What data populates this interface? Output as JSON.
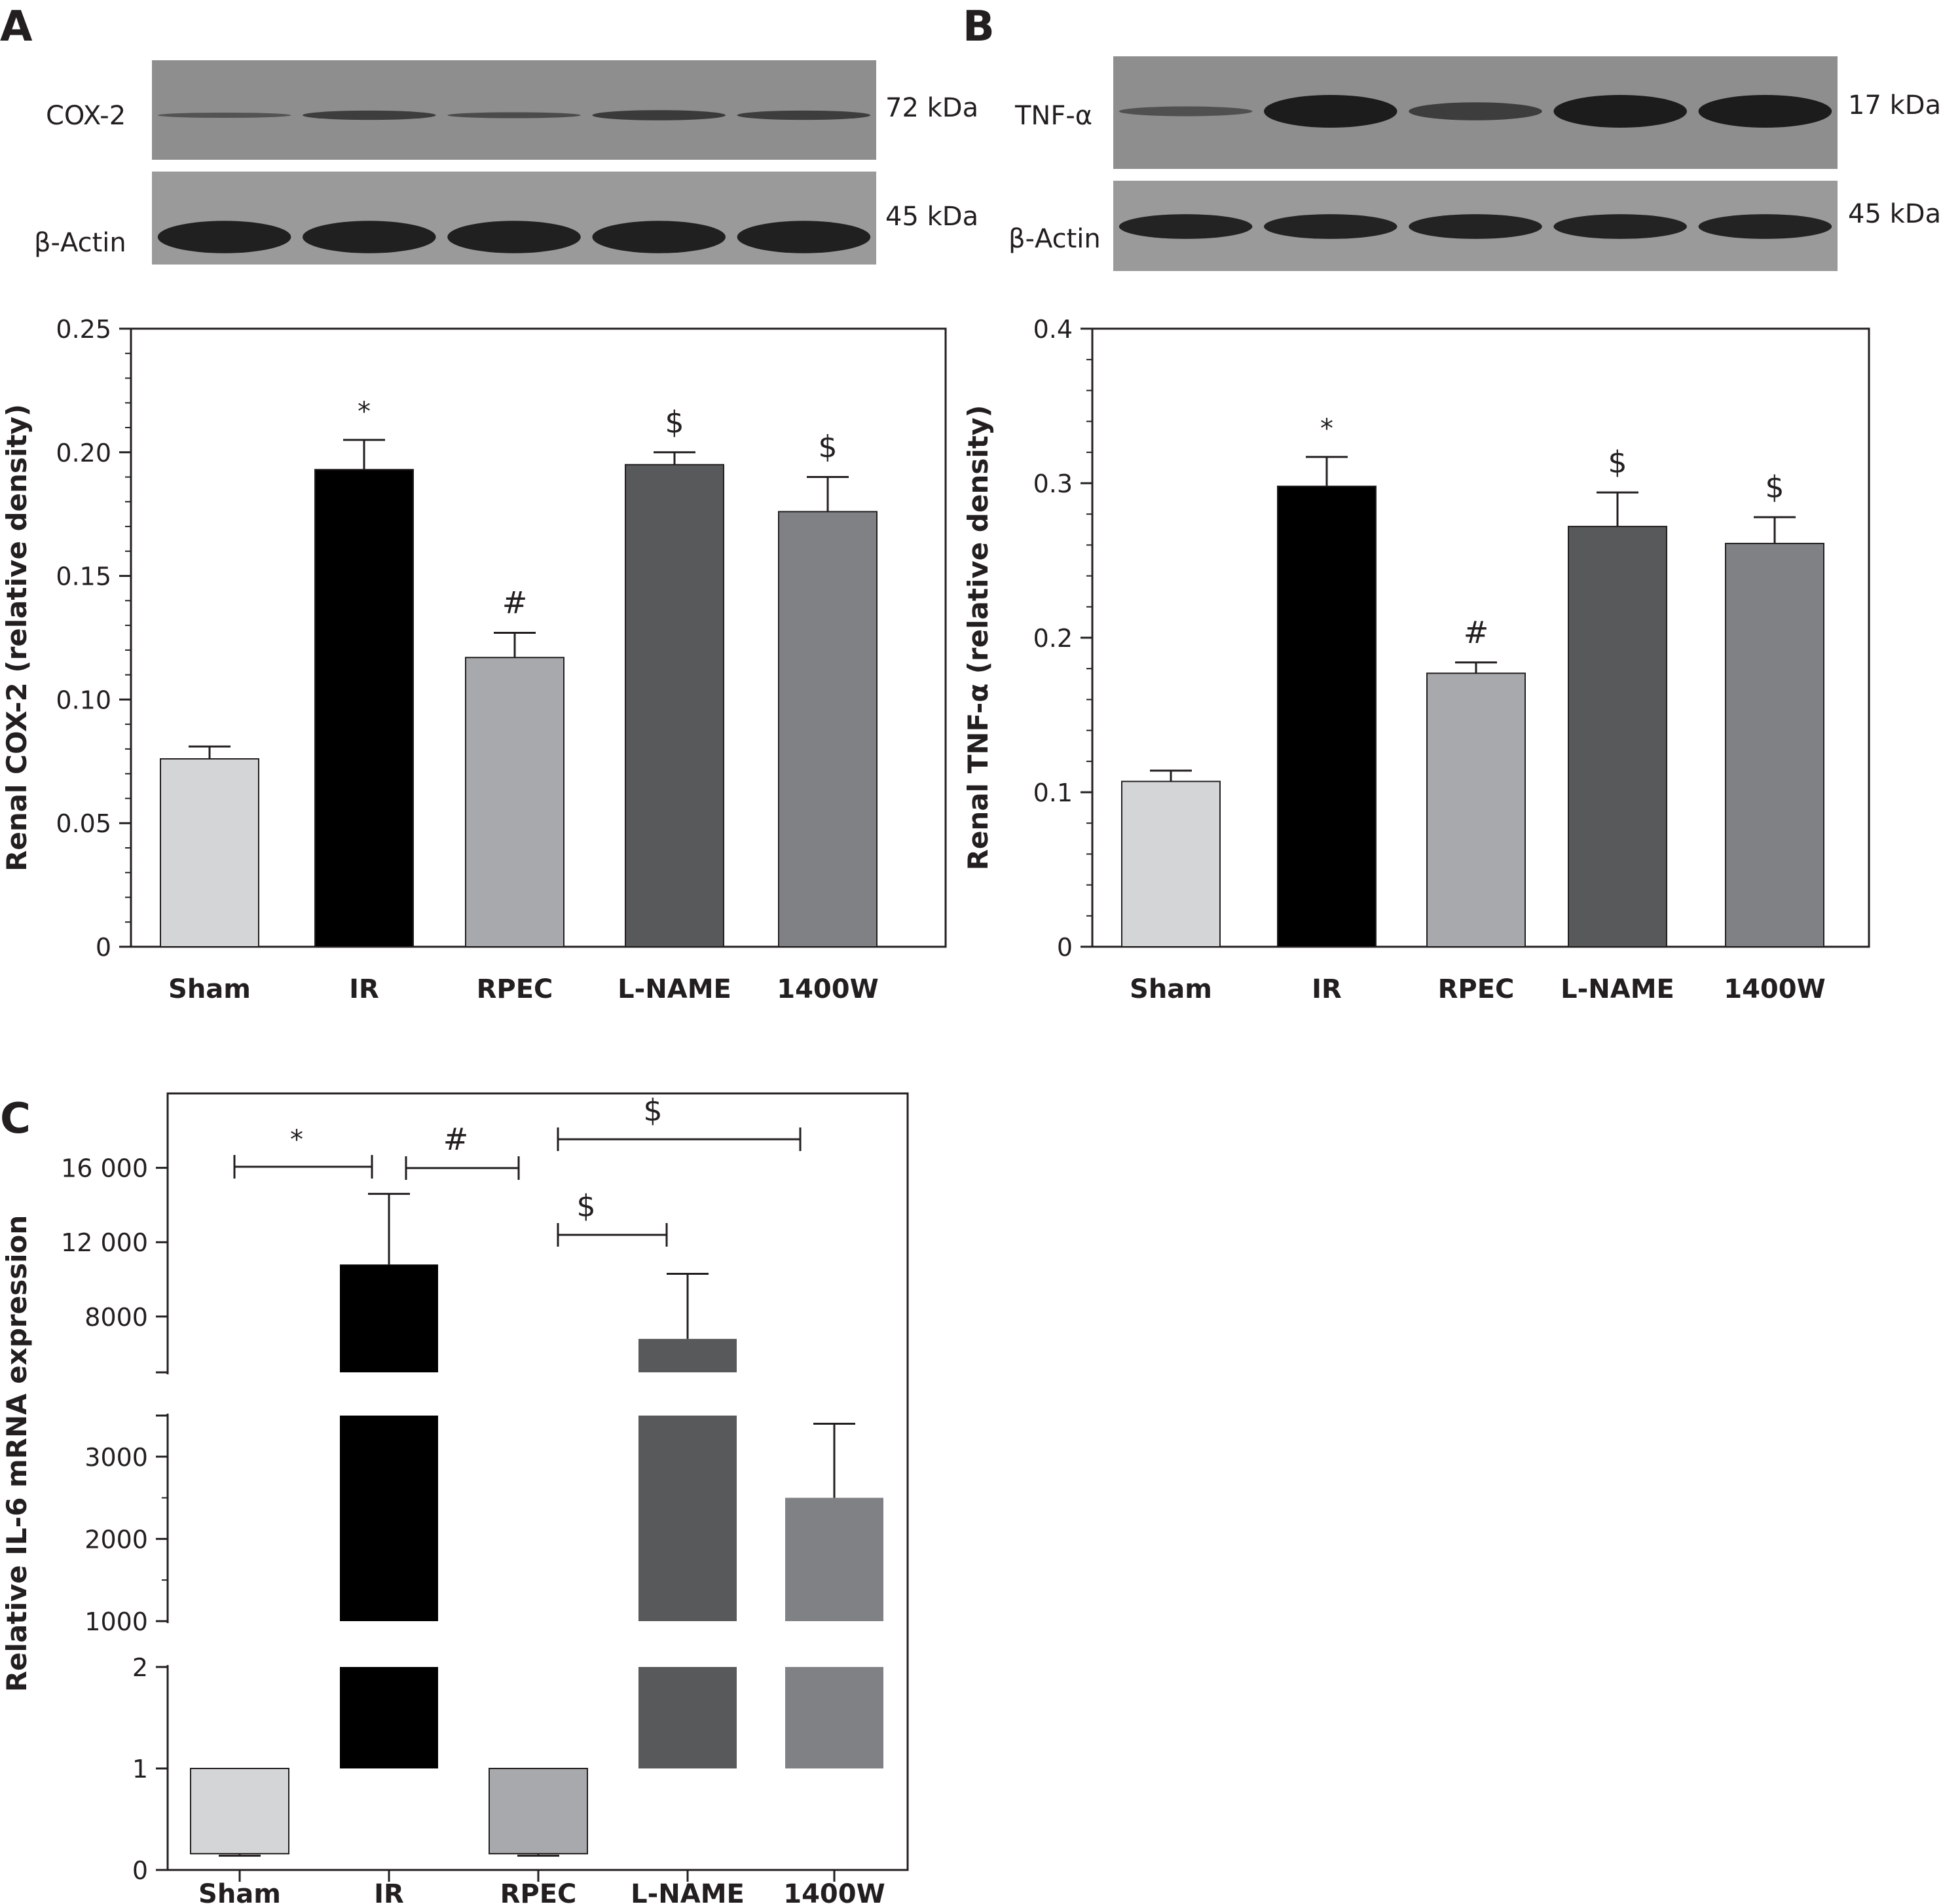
{
  "panels": [
    {
      "letter": "A",
      "protein": "COX-2",
      "size": "72 kDa",
      "actin": "β-Actin",
      "actin_size": "45 kDa"
    },
    {
      "letter": "B",
      "protein": "TNF-α",
      "size": "17 kDa",
      "actin": "β-Actin",
      "actin_size": "45 kDa"
    },
    {
      "letter": "C"
    }
  ],
  "blot_levels": [
    {
      "bands": [
        0.25,
        0.55,
        0.35,
        0.6,
        0.55
      ],
      "actin": [
        0.95,
        0.95,
        0.95,
        0.95,
        0.95
      ]
    },
    {
      "bands": [
        0.3,
        1.0,
        0.55,
        1.0,
        1.0
      ],
      "actin": [
        0.9,
        0.9,
        0.9,
        0.9,
        0.9
      ]
    }
  ],
  "colors": {
    "Sham": "#d4d5d7",
    "IR": "#000000",
    "RPEC": "#a8a9ac",
    "L-NAME": "#58595b",
    "1400W": "#808185",
    "axis": "#231f20",
    "blot_bg": "#8e8e8e",
    "band": "#1c1c1c"
  },
  "chart_data": [
    {
      "type": "bar",
      "categories": [
        "Sham",
        "IR",
        "RPEC",
        "L-NAME",
        "1400W"
      ],
      "values": [
        0.076,
        0.193,
        0.117,
        0.195,
        0.176
      ],
      "errors": [
        0.005,
        0.012,
        0.01,
        0.005,
        0.014
      ],
      "annotations": [
        "",
        "*",
        "#",
        "$",
        "$"
      ],
      "ylabel": "Renal COX-2 (relative density)",
      "ylim": [
        0,
        0.25
      ],
      "yticks": [
        "0",
        "0.05",
        "0.10",
        "0.15",
        "0.20",
        "0.25"
      ]
    },
    {
      "type": "bar",
      "categories": [
        "Sham",
        "IR",
        "RPEC",
        "L-NAME",
        "1400W"
      ],
      "values": [
        0.107,
        0.298,
        0.177,
        0.272,
        0.261
      ],
      "errors": [
        0.007,
        0.019,
        0.007,
        0.022,
        0.017
      ],
      "annotations": [
        "",
        "*",
        "#",
        "$",
        "$"
      ],
      "ylabel": "Renal TNF-α (relative density)",
      "ylim": [
        0,
        0.4
      ],
      "yticks": [
        "0",
        "0.1",
        "0.2",
        "0.3",
        "0.4"
      ]
    },
    {
      "type": "bar",
      "categories": [
        "Sham",
        "IR",
        "RPEC",
        "L-NAME",
        "1400W"
      ],
      "values": [
        0.16,
        10800,
        0.16,
        6800,
        2500
      ],
      "errors": [
        0.02,
        3800,
        0.02,
        3500,
        900
      ],
      "ylabel": "Relative IL-6 mRNA expression",
      "yticks": [
        "0",
        "1",
        "2",
        "1000",
        "2000",
        "3000",
        "8000",
        "12 000",
        "16 000"
      ],
      "significance": [
        {
          "from": "Sham",
          "to": "IR",
          "label": "*"
        },
        {
          "from": "IR",
          "to": "RPEC",
          "label": "#"
        },
        {
          "from": "RPEC",
          "to": "1400W",
          "label": "$"
        },
        {
          "from": "RPEC",
          "to": "L-NAME",
          "label": "$"
        }
      ]
    }
  ]
}
